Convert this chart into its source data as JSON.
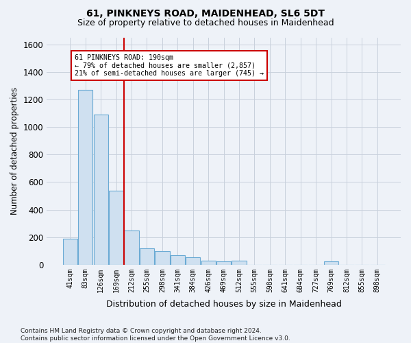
{
  "title1": "61, PINKNEYS ROAD, MAIDENHEAD, SL6 5DT",
  "title2": "Size of property relative to detached houses in Maidenhead",
  "xlabel": "Distribution of detached houses by size in Maidenhead",
  "ylabel": "Number of detached properties",
  "footnote": "Contains HM Land Registry data © Crown copyright and database right 2024.\nContains public sector information licensed under the Open Government Licence v3.0.",
  "categories": [
    "41sqm",
    "83sqm",
    "126sqm",
    "169sqm",
    "212sqm",
    "255sqm",
    "298sqm",
    "341sqm",
    "384sqm",
    "426sqm",
    "469sqm",
    "512sqm",
    "555sqm",
    "598sqm",
    "641sqm",
    "684sqm",
    "727sqm",
    "769sqm",
    "812sqm",
    "855sqm",
    "898sqm"
  ],
  "values": [
    190,
    1270,
    1090,
    540,
    250,
    120,
    100,
    70,
    55,
    30,
    25,
    30,
    0,
    0,
    0,
    0,
    0,
    25,
    0,
    0,
    0
  ],
  "bar_color": "#cfe0f0",
  "bar_edge_color": "#6aaad4",
  "marker_label": "61 PINKNEYS ROAD: 190sqm",
  "annotation_line1": "← 79% of detached houses are smaller (2,857)",
  "annotation_line2": "21% of semi-detached houses are larger (745) →",
  "annotation_box_color": "white",
  "annotation_box_edge_color": "#cc0000",
  "marker_line_color": "#cc0000",
  "ylim": [
    0,
    1650
  ],
  "yticks": [
    0,
    200,
    400,
    600,
    800,
    1000,
    1200,
    1400,
    1600
  ],
  "grid_color": "#c8d0dc",
  "background_color": "#eef2f8"
}
